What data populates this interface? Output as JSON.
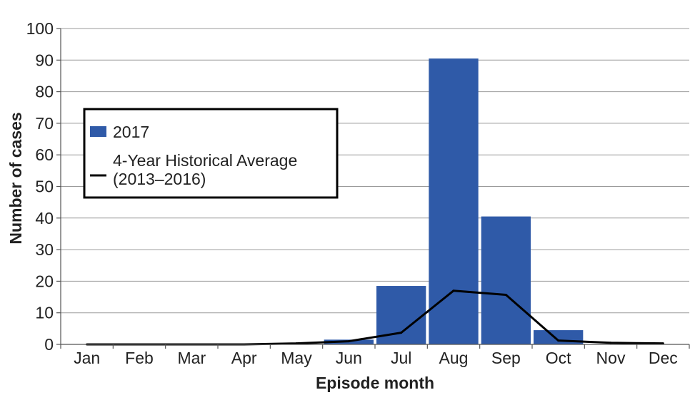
{
  "chart_data": {
    "type": "bar",
    "categories": [
      "Jan",
      "Feb",
      "Mar",
      "Apr",
      "May",
      "Jun",
      "Jul",
      "Aug",
      "Sep",
      "Oct",
      "Nov",
      "Dec"
    ],
    "series": [
      {
        "name": "2017",
        "type": "bar",
        "color": "#2f5aa8",
        "values": [
          0,
          0,
          0,
          0,
          0,
          1.5,
          18.5,
          90.5,
          40.5,
          4.5,
          0,
          0
        ]
      },
      {
        "name": "4-Year Historical Average (2013–2016)",
        "name_lines": [
          "4-Year Historical Average",
          "(2013–2016)"
        ],
        "type": "line",
        "color": "#000000",
        "values": [
          0,
          0,
          0,
          0,
          0.3,
          1.0,
          3.7,
          17.0,
          15.7,
          1.2,
          0.5,
          0.3
        ]
      }
    ],
    "xlabel": "Episode month",
    "ylabel": "Number of cases",
    "ylim": [
      0,
      100
    ],
    "yticks": [
      0,
      10,
      20,
      30,
      40,
      50,
      60,
      70,
      80,
      90,
      100
    ],
    "grid": true,
    "legend_position": "left"
  }
}
